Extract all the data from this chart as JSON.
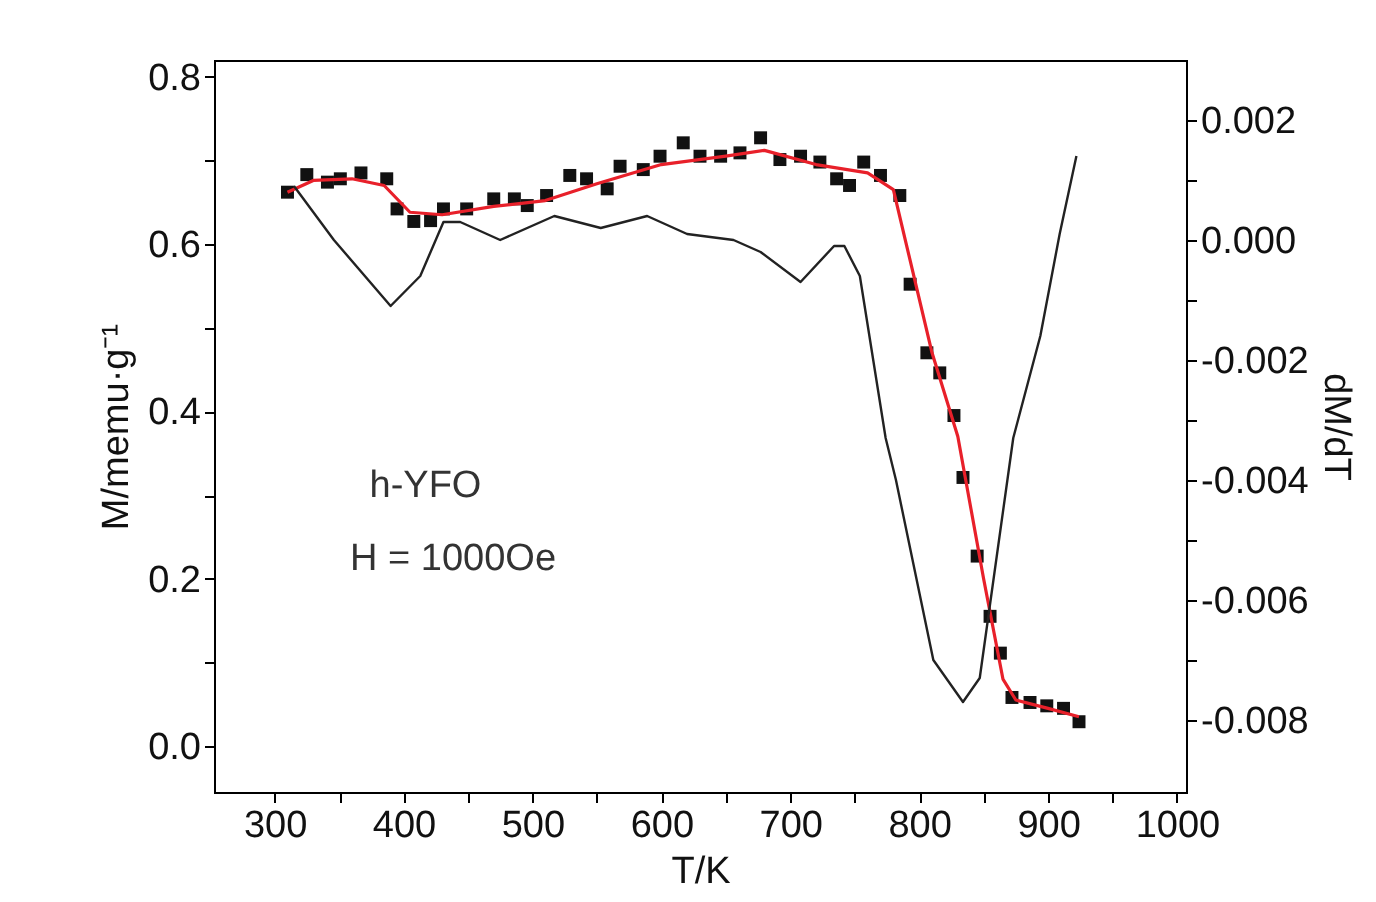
{
  "chart_data": {
    "type": "scatter",
    "xlabel": "T/K",
    "ylabel": "M/memu·g⁻¹",
    "y2label": "dM/dT",
    "annotations": [
      "h-YFO",
      "H = 1000Oe"
    ],
    "xlim": [
      253,
      1007
    ],
    "xticks": [
      300,
      {
        "value": 350,
        "label": null
      },
      400,
      {
        "value": 450,
        "label": null
      },
      500,
      {
        "value": 550,
        "label": null
      },
      600,
      {
        "value": 650,
        "label": null
      },
      700,
      {
        "value": 750,
        "label": null
      },
      800,
      {
        "value": 850,
        "label": null
      },
      900,
      {
        "value": 950,
        "label": null
      },
      1000
    ],
    "ylim": [
      -0.055,
      0.82
    ],
    "yticks": [
      {
        "value": 0,
        "label": "0.0"
      },
      {
        "value": 0.1,
        "label": null
      },
      {
        "value": 0.2,
        "label": "0.2"
      },
      {
        "value": 0.3,
        "label": null
      },
      {
        "value": 0.4,
        "label": "0.4"
      },
      {
        "value": 0.5,
        "label": null
      },
      {
        "value": 0.6,
        "label": "0.6"
      },
      {
        "value": 0.7,
        "label": null
      },
      {
        "value": 0.8,
        "label": "0.8"
      }
    ],
    "y2lim": [
      -0.0092,
      0.003
    ],
    "y2ticks": [
      {
        "value": -0.008,
        "label": "-0.008"
      },
      {
        "value": -0.007,
        "label": null
      },
      {
        "value": -0.006,
        "label": "-0.006"
      },
      {
        "value": -0.005,
        "label": null
      },
      {
        "value": -0.004,
        "label": "-0.004"
      },
      {
        "value": -0.003,
        "label": null
      },
      {
        "value": -0.002,
        "label": "-0.002"
      },
      {
        "value": -0.001,
        "label": null
      },
      {
        "value": 0,
        "label": "0.000"
      },
      {
        "value": 0.001,
        "label": null
      },
      {
        "value": 0.002,
        "label": "0.002"
      }
    ],
    "grid": false,
    "series": [
      {
        "color": "#111111",
        "marker": "square",
        "x": [
          310,
          325,
          341,
          351,
          367,
          387,
          395,
          408,
          421,
          431,
          449,
          470,
          486,
          496,
          511,
          529,
          542,
          558,
          568,
          586,
          599,
          617,
          630,
          646,
          661,
          677,
          692,
          708,
          723,
          736,
          746,
          757,
          770,
          785,
          793,
          806,
          816,
          827,
          834,
          845,
          855,
          863,
          872,
          886,
          899,
          912,
          924
        ],
        "values": [
          0.662,
          0.683,
          0.674,
          0.678,
          0.685,
          0.678,
          0.642,
          0.627,
          0.628,
          0.642,
          0.642,
          0.654,
          0.654,
          0.646,
          0.658,
          0.682,
          0.678,
          0.666,
          0.693,
          0.689,
          0.705,
          0.721,
          0.705,
          0.705,
          0.709,
          0.727,
          0.701,
          0.705,
          0.698,
          0.678,
          0.67,
          0.698,
          0.682,
          0.658,
          0.552,
          0.47,
          0.446,
          0.395,
          0.321,
          0.227,
          0.155,
          0.111,
          0.058,
          0.052,
          0.048,
          0.045,
          0.029
        ]
      },
      {
        "type": "line",
        "color": "#e8202a",
        "x": [
          310,
          330,
          360,
          385,
          405,
          430,
          470,
          510,
          550,
          600,
          650,
          680,
          720,
          760,
          780,
          790,
          810,
          830,
          850,
          865,
          875,
          900,
          924
        ],
        "values": [
          0.662,
          0.676,
          0.678,
          0.67,
          0.638,
          0.635,
          0.645,
          0.652,
          0.672,
          0.695,
          0.705,
          0.712,
          0.695,
          0.685,
          0.665,
          0.6,
          0.47,
          0.37,
          0.2,
          0.08,
          0.055,
          0.045,
          0.035
        ]
      },
      {
        "type": "line",
        "color": "#222222",
        "axis": "y2",
        "x": [
          315,
          346,
          390,
          413,
          431,
          444,
          475,
          517,
          553,
          589,
          620,
          656,
          677,
          708,
          734,
          742,
          754,
          774,
          782,
          811,
          834,
          847,
          873,
          894,
          909,
          922
        ],
        "values": [
          0.0009,
          0,
          -0.0011,
          -0.0006,
          0.0003,
          0.0003,
          0,
          0.0004,
          0.0002,
          0.0004,
          0.0001,
          0,
          -0.0002,
          -0.0007,
          -0.0001,
          -0.0001,
          -0.0006,
          -0.0033,
          -0.004,
          -0.007,
          -0.0077,
          -0.0073,
          -0.0033,
          -0.0016,
          0.0001,
          0.0014
        ]
      }
    ]
  }
}
